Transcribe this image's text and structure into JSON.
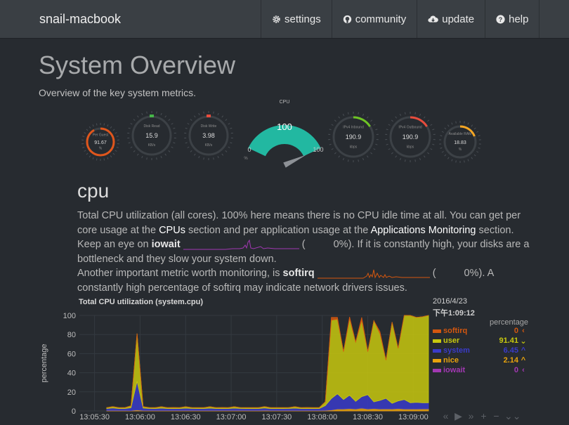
{
  "navbar": {
    "brand": "snail-macbook",
    "items": [
      {
        "label": "settings",
        "icon": "gear-icon"
      },
      {
        "label": "community",
        "icon": "github-icon"
      },
      {
        "label": "update",
        "icon": "cloud-download-icon"
      },
      {
        "label": "help",
        "icon": "question-circle-icon"
      }
    ]
  },
  "page": {
    "title": "System Overview",
    "subtitle": "Overview of the key system metrics."
  },
  "gauges": {
    "cpu": {
      "label": "CPU",
      "value": "100",
      "min": "0",
      "max": "100",
      "units": "%",
      "fraction": 1.0,
      "color": "#22b8a1"
    },
    "easypie": [
      {
        "label": "Per Guest",
        "value": "91.67",
        "units": "%",
        "fraction": 0.92,
        "color": "#e0561c",
        "marker": false
      },
      {
        "label": "Disk Read",
        "value": "15.9",
        "units": "KB/s",
        "fraction": 0.0,
        "color": "#46b649",
        "marker": true
      },
      {
        "label": "Disk Write",
        "value": "3.98",
        "units": "KB/s",
        "fraction": 0.0,
        "color": "#e84c3d",
        "marker": true
      },
      {
        "label": "IPv4 Inbound",
        "value": "190.9",
        "units": "kbps",
        "fraction": 0.16,
        "color": "#6fc425",
        "marker": false
      },
      {
        "label": "IPv4 Outbound",
        "value": "190.9",
        "units": "kbps",
        "fraction": 0.16,
        "color": "#e84c3d",
        "marker": false
      },
      {
        "label": "Available RAM",
        "value": "18.83",
        "units": "%",
        "fraction": 0.19,
        "color": "#f5a623",
        "marker": false
      }
    ]
  },
  "cpu_section": {
    "title": "cpu",
    "p1_a": "Total CPU utilization (all cores). 100% here means there is no CPU idle time at all. You can get per core usage at the ",
    "p1_link1": "CPUs",
    "p1_b": " section and per application usage at the ",
    "p1_link2": "Applications Monitoring",
    "p1_c": " section.",
    "p2_a": "Keep an eye on ",
    "p2_bold": "iowait",
    "p2_b": " (",
    "p2_c": "0%). If it is constantly high, your disks are a bottleneck and they slow your system down.",
    "p3_a": "Another important metric worth monitoring, is ",
    "p3_bold": "softirq",
    "p3_b": " (",
    "p3_c": "0%). A constantly high percentage of softirq may indicate network drivers issues."
  },
  "chart": {
    "title": "Total CPU utilization (system.cpu)",
    "legend_date": "2016/4/23",
    "legend_time": "下午1:09:12",
    "units_label": "percentage",
    "controls": [
      "«",
      "▶",
      "»",
      "+",
      "−",
      "⌄⌄"
    ]
  },
  "chart_data": {
    "type": "area",
    "title": "Total CPU utilization (system.cpu)",
    "ylabel": "percentage",
    "xlabel": "",
    "ylim": [
      0,
      100
    ],
    "yticks": [
      "0",
      "20",
      "40",
      "60",
      "80",
      "100"
    ],
    "xticks": [
      "13:05:30",
      "13:06:00",
      "13:06:30",
      "13:07:00",
      "13:07:30",
      "13:08:00",
      "13:08:30",
      "13:09:00"
    ],
    "x": [
      "13:05:38",
      "13:05:42",
      "13:05:46",
      "13:05:50",
      "13:05:54",
      "13:05:58",
      "13:06:02",
      "13:06:06",
      "13:06:10",
      "13:06:14",
      "13:06:18",
      "13:06:22",
      "13:06:26",
      "13:06:30",
      "13:06:34",
      "13:06:38",
      "13:06:42",
      "13:06:46",
      "13:06:50",
      "13:06:54",
      "13:06:58",
      "13:07:02",
      "13:07:06",
      "13:07:10",
      "13:07:14",
      "13:07:18",
      "13:07:22",
      "13:07:26",
      "13:07:30",
      "13:07:34",
      "13:07:38",
      "13:07:42",
      "13:07:46",
      "13:07:50",
      "13:07:54",
      "13:07:58",
      "13:08:02",
      "13:08:06",
      "13:08:10",
      "13:08:14",
      "13:08:18",
      "13:08:22",
      "13:08:26",
      "13:08:30",
      "13:08:34",
      "13:08:38",
      "13:08:42",
      "13:08:46",
      "13:08:50",
      "13:08:54",
      "13:08:58",
      "13:09:02",
      "13:09:06",
      "13:09:10"
    ],
    "series": [
      {
        "name": "iowait",
        "color": "#a238b3",
        "values": [
          0,
          0,
          0,
          0,
          0,
          0,
          0,
          0,
          0,
          0,
          0,
          0,
          0,
          0,
          0,
          0,
          0,
          0,
          0,
          0,
          0,
          0,
          0,
          0,
          0,
          0,
          0,
          0,
          0,
          0,
          0,
          0,
          0,
          0,
          0,
          0,
          0,
          0,
          0,
          0,
          0,
          0,
          0,
          0,
          0,
          0,
          0,
          0,
          0,
          0,
          0,
          0,
          0,
          0
        ]
      },
      {
        "name": "nice",
        "color": "#e8a30c",
        "values": [
          0.5,
          0.6,
          0.5,
          0.5,
          0.4,
          1,
          0.5,
          0.6,
          0.5,
          0.5,
          0.5,
          0.6,
          0.5,
          0.5,
          0.6,
          0.5,
          0.5,
          0.5,
          0.5,
          0.6,
          0.5,
          0.5,
          0.6,
          0.5,
          0.5,
          0.5,
          0.6,
          0.5,
          0.5,
          0.5,
          0.6,
          0.5,
          0.5,
          0.6,
          0.5,
          0.5,
          0.6,
          1,
          2,
          2,
          2.5,
          2,
          3,
          2,
          2.5,
          2,
          2.2,
          2,
          2.5,
          2,
          2.14,
          2,
          2.1,
          2.14
        ]
      },
      {
        "name": "system",
        "color": "#3a3bc9",
        "values": [
          2,
          2.5,
          2,
          2,
          3,
          30,
          2.5,
          2,
          2,
          2.5,
          2,
          2,
          2,
          2.5,
          2,
          2,
          2,
          2.5,
          2,
          2,
          2,
          2.5,
          2,
          2,
          2,
          2,
          2.5,
          2,
          2,
          2,
          2,
          2.5,
          2,
          2,
          2,
          2,
          5,
          12,
          16,
          10,
          14,
          8,
          12,
          15,
          7,
          9,
          11,
          6,
          8,
          10,
          6.45,
          7,
          6.5,
          6.45
        ]
      },
      {
        "name": "user",
        "color": "#c8c80e",
        "values": [
          1,
          1.5,
          1,
          1,
          2,
          50,
          1.5,
          1,
          1,
          1.5,
          1,
          1,
          1,
          1.5,
          1,
          1,
          1,
          1.5,
          1,
          1,
          1,
          1.5,
          1,
          1,
          1,
          1,
          1.5,
          1,
          1,
          1,
          1,
          1.5,
          1,
          1,
          1,
          1,
          4,
          82,
          78,
          50,
          80,
          62,
          80,
          45,
          85,
          70,
          40,
          85,
          55,
          88,
          91.41,
          89,
          90,
          91.41
        ]
      },
      {
        "name": "softirq",
        "color": "#d4570f",
        "values": [
          0,
          0,
          0,
          0,
          0,
          0,
          0,
          0,
          0,
          0,
          0,
          0,
          0,
          0,
          0,
          0,
          0,
          0,
          0,
          0,
          0,
          0,
          0,
          0,
          0,
          0,
          0,
          0,
          0,
          0,
          0,
          0,
          0,
          0,
          0,
          0,
          0,
          3,
          2,
          0,
          2,
          0,
          3,
          0,
          0,
          2,
          0,
          0,
          0,
          0,
          0,
          0,
          0,
          0
        ]
      }
    ],
    "legend": [
      {
        "name": "softirq",
        "value": "0",
        "arrow": "‹",
        "color": "#d4570f"
      },
      {
        "name": "user",
        "value": "91.41",
        "arrow": "⌄",
        "color": "#c8c80e"
      },
      {
        "name": "system",
        "value": "6.45",
        "arrow": "^",
        "color": "#3a3bc9"
      },
      {
        "name": "nice",
        "value": "2.14",
        "arrow": "^",
        "color": "#e8a30c"
      },
      {
        "name": "iowait",
        "value": "0",
        "arrow": "‹",
        "color": "#a238b3"
      }
    ]
  }
}
